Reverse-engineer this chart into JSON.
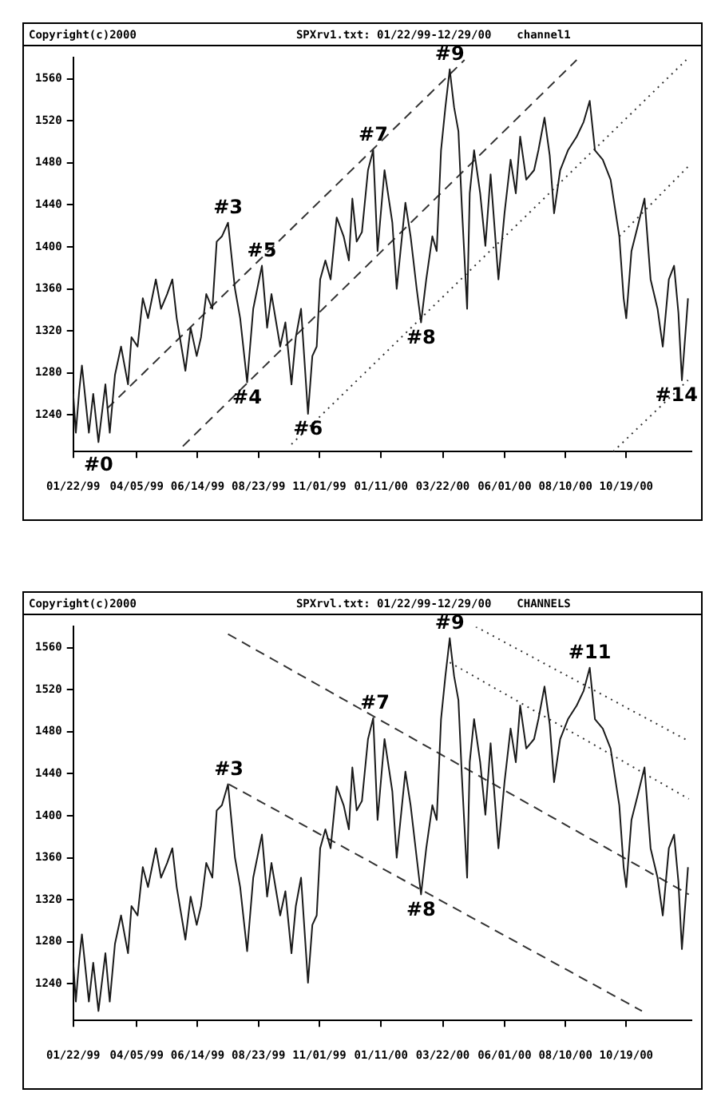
{
  "chart_data": [
    {
      "type": "line",
      "title": "Copyright(c)2000",
      "subtitle": "SPXrv1.txt: 01/22/99-12/29/00",
      "x": [
        "1999-01-22",
        "1999-01-25",
        "1999-01-29",
        "1999-02-01",
        "1999-02-09",
        "1999-02-14",
        "1999-02-20",
        "1999-02-28",
        "1999-03-05",
        "1999-03-11",
        "1999-03-18",
        "1999-03-26",
        "1999-03-30",
        "1999-04-06",
        "1999-04-12",
        "1999-04-18",
        "1999-04-27",
        "1999-05-03",
        "1999-05-10",
        "1999-05-16",
        "1999-05-21",
        "1999-05-31",
        "1999-06-06",
        "1999-06-13",
        "1999-06-18",
        "1999-06-24",
        "1999-07-01",
        "1999-07-06",
        "1999-07-12",
        "1999-07-19",
        "1999-07-27",
        "1999-08-02",
        "1999-08-10",
        "1999-08-17",
        "1999-08-27",
        "1999-09-02",
        "1999-09-07",
        "1999-09-17",
        "1999-09-23",
        "1999-09-30",
        "1999-10-05",
        "1999-10-11",
        "1999-10-19",
        "1999-10-24",
        "1999-10-29",
        "1999-11-02",
        "1999-11-08",
        "1999-11-14",
        "1999-11-21",
        "1999-11-29",
        "1999-12-05",
        "1999-12-09",
        "1999-12-14",
        "1999-12-20",
        "1999-12-27",
        "2000-01-02",
        "2000-01-07",
        "2000-01-15",
        "2000-01-24",
        "2000-01-29",
        "2000-02-08",
        "2000-02-14",
        "2000-02-21",
        "2000-02-26",
        "2000-03-03",
        "2000-03-10",
        "2000-03-15",
        "2000-03-20",
        "2000-03-25",
        "2000-03-30",
        "2000-04-04",
        "2000-04-09",
        "2000-04-13",
        "2000-04-19",
        "2000-04-22",
        "2000-04-27",
        "2000-05-04",
        "2000-05-10",
        "2000-05-16",
        "2000-05-25",
        "2000-06-01",
        "2000-06-08",
        "2000-06-14",
        "2000-06-19",
        "2000-06-26",
        "2000-07-05",
        "2000-07-10",
        "2000-07-17",
        "2000-07-23",
        "2000-07-28",
        "2000-08-04",
        "2000-08-13",
        "2000-08-23",
        "2000-08-31",
        "2000-09-07",
        "2000-09-13",
        "2000-09-22",
        "2000-10-01",
        "2000-10-11",
        "2000-10-16",
        "2000-10-19",
        "2000-10-25",
        "2000-11-01",
        "2000-11-09",
        "2000-11-16",
        "2000-11-24",
        "2000-11-30",
        "2000-12-07",
        "2000-12-13",
        "2000-12-18",
        "2000-12-22",
        "2000-12-27",
        "2000-12-29"
      ],
      "xlim": [
        "1999-01-22",
        "2001-01-02"
      ],
      "xticks": [
        {
          "value": "1999-01-22",
          "label": "01/22/99"
        },
        {
          "value": "1999-04-05",
          "label": "04/05/99"
        },
        {
          "value": "1999-06-14",
          "label": "06/14/99"
        },
        {
          "value": "1999-08-23",
          "label": "08/23/99"
        },
        {
          "value": "1999-11-01",
          "label": "11/01/99"
        },
        {
          "value": "2000-01-11",
          "label": "01/11/00"
        },
        {
          "value": "2000-03-22",
          "label": "03/22/00"
        },
        {
          "value": "2000-06-01",
          "label": "06/01/00"
        },
        {
          "value": "2000-08-10",
          "label": "08/10/00"
        },
        {
          "value": "2000-10-19",
          "label": "10/19/00"
        }
      ],
      "ylim": [
        1205,
        1580
      ],
      "yticks": [
        1240,
        1280,
        1320,
        1360,
        1400,
        1440,
        1480,
        1520,
        1560
      ],
      "grid": false,
      "legend": false,
      "marker": "none",
      "series": [
        {
          "color": "#1a1a1a",
          "values": [
            1260,
            1223,
            1264,
            1287,
            1223,
            1260,
            1214,
            1269,
            1223,
            1278,
            1305,
            1269,
            1314,
            1305,
            1351,
            1332,
            1369,
            1341,
            1355,
            1369,
            1332,
            1282,
            1323,
            1296,
            1314,
            1355,
            1341,
            1405,
            1410,
            1423,
            1360,
            1332,
            1271,
            1341,
            1382,
            1323,
            1355,
            1305,
            1328,
            1269,
            1314,
            1341,
            1241,
            1296,
            1305,
            1369,
            1387,
            1369,
            1428,
            1410,
            1387,
            1446,
            1405,
            1414,
            1473,
            1492,
            1396,
            1473,
            1423,
            1360,
            1442,
            1410,
            1360,
            1328,
            1369,
            1410,
            1396,
            1492,
            1533,
            1569,
            1533,
            1510,
            1437,
            1341,
            1451,
            1492,
            1451,
            1401,
            1469,
            1369,
            1432,
            1483,
            1451,
            1505,
            1464,
            1473,
            1492,
            1523,
            1487,
            1432,
            1473,
            1492,
            1505,
            1519,
            1539,
            1492,
            1483,
            1464,
            1410,
            1351,
            1332,
            1396,
            1419,
            1446,
            1369,
            1341,
            1305,
            1369,
            1382,
            1337,
            1273,
            1328,
            1351
          ]
        },
        {
          "type": "line",
          "color": "#333333",
          "line_style": "dashed",
          "x": [
            "1999-03-02",
            "2000-04-16"
          ],
          "values": [
            1246,
            1578
          ]
        },
        {
          "type": "line",
          "color": "#333333",
          "line_style": "dashed",
          "x": [
            "1999-05-28",
            "2000-08-23"
          ],
          "values": [
            1210,
            1578
          ]
        },
        {
          "type": "line",
          "color": "#333333",
          "line_style": "dotted",
          "x": [
            "1999-09-30",
            "2000-12-27"
          ],
          "values": [
            1212,
            1578
          ]
        },
        {
          "type": "line",
          "color": "#333333",
          "line_style": "dotted",
          "x": [
            "2000-10-11",
            "2000-12-31"
          ],
          "values": [
            1410,
            1478
          ]
        },
        {
          "type": "line",
          "color": "#333333",
          "line_style": "dotted",
          "x": [
            "2000-10-04",
            "2000-12-29"
          ],
          "values": [
            1205,
            1273
          ]
        }
      ],
      "annotations": [
        "channel1",
        {
          "text": "#0",
          "x": "1999-02-20",
          "y": 1214
        },
        {
          "text": "#3",
          "x": "1999-07-19",
          "y": 1423
        },
        {
          "text": "#4",
          "x": "1999-08-10",
          "y": 1271
        },
        {
          "text": "#5",
          "x": "1999-08-27",
          "y": 1382
        },
        {
          "text": "#6",
          "x": "1999-10-19",
          "y": 1241
        },
        {
          "text": "#7",
          "x": "2000-01-02",
          "y": 1492
        },
        {
          "text": "#8",
          "x": "2000-02-26",
          "y": 1328
        },
        {
          "text": "#9",
          "x": "2000-03-30",
          "y": 1569
        },
        {
          "text": "#14",
          "x": "2000-12-22",
          "y": 1273
        }
      ]
    },
    {
      "type": "line",
      "title": "Copyright(c)2000",
      "subtitle": "SPXrvl.txt: 01/22/99-12/29/00",
      "x": [
        "1999-01-22",
        "1999-01-25",
        "1999-01-29",
        "1999-02-01",
        "1999-02-09",
        "1999-02-14",
        "1999-02-20",
        "1999-02-28",
        "1999-03-05",
        "1999-03-11",
        "1999-03-18",
        "1999-03-26",
        "1999-03-30",
        "1999-04-06",
        "1999-04-12",
        "1999-04-18",
        "1999-04-27",
        "1999-05-03",
        "1999-05-10",
        "1999-05-16",
        "1999-05-21",
        "1999-05-31",
        "1999-06-06",
        "1999-06-13",
        "1999-06-18",
        "1999-06-24",
        "1999-07-01",
        "1999-07-06",
        "1999-07-12",
        "1999-07-19",
        "1999-07-27",
        "1999-08-02",
        "1999-08-10",
        "1999-08-17",
        "1999-08-27",
        "1999-09-02",
        "1999-09-07",
        "1999-09-17",
        "1999-09-23",
        "1999-09-30",
        "1999-10-05",
        "1999-10-11",
        "1999-10-19",
        "1999-10-24",
        "1999-10-29",
        "1999-11-02",
        "1999-11-08",
        "1999-11-14",
        "1999-11-21",
        "1999-11-29",
        "1999-12-05",
        "1999-12-09",
        "1999-12-14",
        "1999-12-20",
        "1999-12-27",
        "2000-01-02",
        "2000-01-07",
        "2000-01-15",
        "2000-01-24",
        "2000-01-29",
        "2000-02-08",
        "2000-02-14",
        "2000-02-21",
        "2000-02-26",
        "2000-03-03",
        "2000-03-10",
        "2000-03-15",
        "2000-03-20",
        "2000-03-25",
        "2000-03-30",
        "2000-04-04",
        "2000-04-09",
        "2000-04-13",
        "2000-04-19",
        "2000-04-22",
        "2000-04-27",
        "2000-05-04",
        "2000-05-10",
        "2000-05-16",
        "2000-05-25",
        "2000-06-01",
        "2000-06-08",
        "2000-06-14",
        "2000-06-19",
        "2000-06-26",
        "2000-07-05",
        "2000-07-10",
        "2000-07-17",
        "2000-07-23",
        "2000-07-28",
        "2000-08-04",
        "2000-08-13",
        "2000-08-23",
        "2000-08-31",
        "2000-09-07",
        "2000-09-13",
        "2000-09-22",
        "2000-10-01",
        "2000-10-11",
        "2000-10-16",
        "2000-10-19",
        "2000-10-25",
        "2000-11-01",
        "2000-11-09",
        "2000-11-16",
        "2000-11-24",
        "2000-11-30",
        "2000-12-07",
        "2000-12-13",
        "2000-12-18",
        "2000-12-22",
        "2000-12-27",
        "2000-12-29"
      ],
      "xlim": [
        "1999-01-22",
        "2001-01-02"
      ],
      "xticks": [
        {
          "value": "1999-01-22",
          "label": "01/22/99"
        },
        {
          "value": "1999-04-05",
          "label": "04/05/99"
        },
        {
          "value": "1999-06-14",
          "label": "06/14/99"
        },
        {
          "value": "1999-08-23",
          "label": "08/23/99"
        },
        {
          "value": "1999-11-01",
          "label": "11/01/99"
        },
        {
          "value": "2000-01-11",
          "label": "01/11/00"
        },
        {
          "value": "2000-03-22",
          "label": "03/22/00"
        },
        {
          "value": "2000-06-01",
          "label": "06/01/00"
        },
        {
          "value": "2000-08-10",
          "label": "08/10/00"
        },
        {
          "value": "2000-10-19",
          "label": "10/19/00"
        }
      ],
      "ylim": [
        1205,
        1580
      ],
      "yticks": [
        1240,
        1280,
        1320,
        1360,
        1400,
        1440,
        1480,
        1520,
        1560
      ],
      "grid": false,
      "legend": false,
      "marker": "none",
      "series": [
        {
          "color": "#1a1a1a",
          "values": [
            1260,
            1223,
            1264,
            1287,
            1223,
            1260,
            1214,
            1269,
            1223,
            1278,
            1305,
            1269,
            1314,
            1305,
            1351,
            1332,
            1369,
            1341,
            1355,
            1369,
            1332,
            1282,
            1323,
            1296,
            1314,
            1355,
            1341,
            1405,
            1410,
            1430,
            1360,
            1332,
            1271,
            1341,
            1382,
            1323,
            1355,
            1305,
            1328,
            1269,
            1314,
            1341,
            1241,
            1296,
            1305,
            1369,
            1387,
            1369,
            1428,
            1410,
            1387,
            1446,
            1405,
            1414,
            1473,
            1493,
            1396,
            1473,
            1423,
            1360,
            1442,
            1410,
            1360,
            1325,
            1369,
            1410,
            1396,
            1492,
            1533,
            1569,
            1533,
            1510,
            1437,
            1341,
            1451,
            1492,
            1451,
            1401,
            1469,
            1369,
            1432,
            1483,
            1451,
            1505,
            1464,
            1473,
            1492,
            1523,
            1487,
            1432,
            1473,
            1492,
            1505,
            1519,
            1541,
            1492,
            1483,
            1464,
            1410,
            1351,
            1332,
            1396,
            1419,
            1446,
            1369,
            1341,
            1305,
            1369,
            1382,
            1337,
            1273,
            1328,
            1351
          ]
        },
        {
          "type": "line",
          "color": "#333333",
          "line_style": "dashed",
          "x": [
            "1999-07-19",
            "2000-12-30"
          ],
          "values": [
            1573,
            1325
          ]
        },
        {
          "type": "line",
          "color": "#333333",
          "line_style": "dashed",
          "x": [
            "1999-07-20",
            "2000-11-06"
          ],
          "values": [
            1430,
            1214
          ]
        },
        {
          "type": "line",
          "color": "#333333",
          "line_style": "dotted",
          "x": [
            "2000-04-29",
            "2000-12-30"
          ],
          "values": [
            1580,
            1471
          ]
        },
        {
          "type": "line",
          "color": "#333333",
          "line_style": "dotted",
          "x": [
            "2000-03-30",
            "2000-12-30"
          ],
          "values": [
            1546,
            1416
          ]
        }
      ],
      "annotations": [
        "CHANNELS",
        {
          "text": "#3",
          "x": "1999-07-20",
          "y": 1430
        },
        {
          "text": "#7",
          "x": "2000-01-04",
          "y": 1493
        },
        {
          "text": "#8",
          "x": "2000-02-26",
          "y": 1325
        },
        {
          "text": "#9",
          "x": "2000-03-30",
          "y": 1569
        },
        {
          "text": "#11",
          "x": "2000-09-07",
          "y": 1541
        }
      ]
    }
  ]
}
